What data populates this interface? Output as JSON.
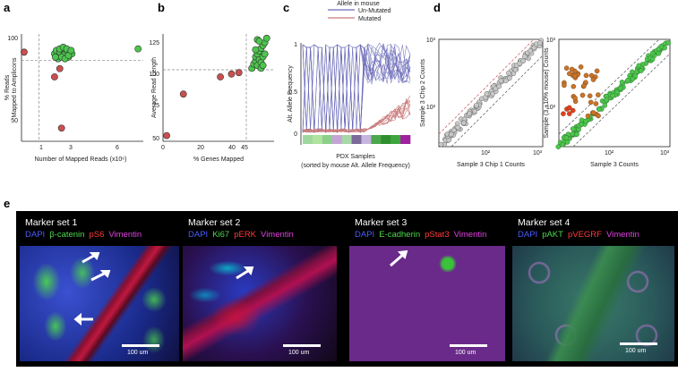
{
  "panels": {
    "a": {
      "letter": "a",
      "xlabel": "Number of Mapped Reads (x10⁶)",
      "ylabel_line1": "% Reads",
      "ylabel_line2": "Mapped to Amplicons"
    },
    "b": {
      "letter": "b",
      "xlabel": "% Genes Mapped",
      "ylabel": "Average Read Length"
    },
    "c": {
      "letter": "c",
      "legend_title": "Allele in mouse",
      "legend_items": [
        "Un-Mutated",
        "Mutated"
      ],
      "ylabel": "Alt. Allele Frequency",
      "xlabel_line1": "PDX Samples",
      "xlabel_line2": "(sorted by mouse Alt. Allele Frequency)"
    },
    "d": {
      "letter": "d",
      "left_xlabel": "Sample 3 Chip 1 Counts",
      "left_ylabel": "Sample 3 Chip 2 Counts",
      "right_xlabel": "Sample 3 Counts",
      "right_ylabel": "Sample (3 +10% mouse) Counts"
    },
    "e": {
      "letter": "e",
      "scale_label": "100 um",
      "marker_sets": [
        {
          "title": "Marker set 1",
          "markers": [
            "DAPI",
            "β-catenin",
            "pS6",
            "Vimentin"
          ]
        },
        {
          "title": "Marker set 2",
          "markers": [
            "DAPI",
            "Ki67",
            "pERK",
            "Vimentin"
          ]
        },
        {
          "title": "Marker set 3",
          "markers": [
            "DAPI",
            "E-cadherin",
            "pStat3",
            "Vimentin"
          ]
        },
        {
          "title": "Marker set 4",
          "markers": [
            "DAPI",
            "pAKT",
            "pVEGRF",
            "Vimentin"
          ]
        }
      ]
    }
  },
  "colors": {
    "green": "#4cc64c",
    "red": "#c9504e",
    "grey": "#c8c8c8",
    "blue_line": "#6a6ab8",
    "red_line": "#c97a7a",
    "dapi": "#4a5cff",
    "green_marker": "#4cd84c",
    "red_marker": "#ff3a3a",
    "vimentin": "#e040e0"
  },
  "chart_data": [
    {
      "type": "scatter",
      "panel": "a",
      "xlabel": "Number of Mapped Reads (x10⁶)",
      "ylabel": "% Reads Mapped to Amplicons",
      "xticks": [
        "1",
        "3",
        "6"
      ],
      "yticks": [
        "50",
        "100"
      ],
      "xlim": [
        0,
        7
      ],
      "ylim": [
        35,
        100
      ],
      "reference_lines": {
        "x": 1,
        "y": 84
      },
      "series": [
        {
          "color": "green",
          "x": [
            1.9,
            2.0,
            2.1,
            2.2,
            2.3,
            2.4,
            2.5,
            2.6,
            2.7,
            2.8,
            2.9,
            2.1,
            2.3,
            2.5,
            2.7,
            2.2,
            2.4,
            2.6,
            1.95,
            2.85,
            6.7
          ],
          "y": [
            88,
            90,
            86,
            89,
            91,
            87,
            88,
            90,
            86,
            89,
            88,
            85,
            86,
            85,
            87,
            91,
            92,
            91,
            86,
            90,
            91
          ]
        },
        {
          "color": "red",
          "x": [
            0.15,
            1.9,
            2.2,
            2.3
          ],
          "y": [
            89,
            74,
            79,
            43
          ]
        }
      ]
    },
    {
      "type": "scatter",
      "panel": "b",
      "xlabel": "% Genes Mapped",
      "ylabel": "Average Read Length",
      "xticks": [
        "0",
        "20",
        "40",
        "45"
      ],
      "yticks": [
        "50",
        "75",
        "100",
        "125"
      ],
      "xlim": [
        0,
        60
      ],
      "ylim": [
        50,
        125
      ],
      "reference_lines": {
        "x": 45,
        "y": 100
      },
      "series": [
        {
          "color": "red",
          "x": [
            2,
            11,
            31,
            37,
            41
          ],
          "y": [
            54,
            83,
            95,
            97,
            98
          ]
        },
        {
          "color": "green",
          "x": [
            48,
            49,
            50,
            50,
            51,
            51,
            52,
            52,
            53,
            53,
            54,
            54,
            55,
            55,
            51,
            53,
            52,
            54,
            50,
            56
          ],
          "y": [
            101,
            104,
            106,
            109,
            103,
            111,
            107,
            113,
            105,
            115,
            109,
            117,
            111,
            119,
            121,
            101,
            120,
            103,
            114,
            122
          ]
        }
      ]
    },
    {
      "type": "line",
      "panel": "c",
      "ylabel": "Alt. Allele Frequency",
      "xlabel": "PDX Samples (sorted by mouse Alt. Allele Frequency)",
      "yticks": [
        "0",
        "0.5",
        "1"
      ],
      "ylim": [
        0,
        1
      ],
      "series": [
        {
          "name": "Un-Mutated",
          "color": "blue_line"
        },
        {
          "name": "Mutated",
          "color": "red_line"
        }
      ],
      "sample_bar": [
        "#9fd89f",
        "#b0e2a0",
        "#8bcf8b",
        "#c4a4d4",
        "#a8d8a8",
        "#7b6a9a",
        "#c8b4e0",
        "#4ca84c",
        "#2f8f2f",
        "#3da63d",
        "#a020a0"
      ]
    },
    {
      "type": "scatter",
      "panel": "d-left",
      "xlabel": "Sample 3 Chip 1 Counts",
      "ylabel": "Sample 3 Chip 2 Counts",
      "xticks": [
        "10²",
        "10³"
      ],
      "yticks": [
        "10²",
        "10³"
      ],
      "scale": "log",
      "series": [
        {
          "color": "grey",
          "relation": "y ≈ x"
        }
      ]
    },
    {
      "type": "scatter",
      "panel": "d-right",
      "xlabel": "Sample 3 Counts",
      "ylabel": "Sample (3 +10% mouse) Counts",
      "xticks": [
        "10²",
        "10³"
      ],
      "yticks": [
        "10²",
        "10³"
      ],
      "scale": "log",
      "series": [
        {
          "color": "green",
          "relation": "y ≈ x"
        },
        {
          "color": "red",
          "relation": "y > x (mouse outliers)"
        }
      ]
    }
  ]
}
